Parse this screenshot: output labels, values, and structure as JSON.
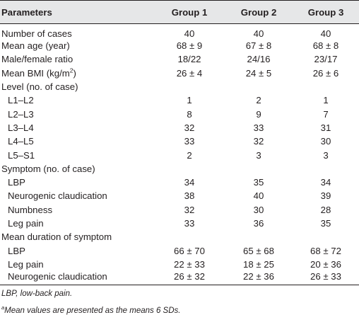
{
  "table": {
    "headers": [
      "Parameters",
      "Group 1",
      "Group 2",
      "Group 3"
    ],
    "rows": [
      {
        "label": "Number of cases",
        "sub": false,
        "values": [
          "40",
          "40",
          "40"
        ]
      },
      {
        "label": "Mean age (year)",
        "sub": false,
        "values": [
          "68 ± 9",
          "67 ± 8",
          "68 ± 8"
        ]
      },
      {
        "label": "Male/female ratio",
        "sub": false,
        "values": [
          "18/22",
          "24/16",
          "23/17"
        ]
      },
      {
        "label": "Mean BMI (kg/m",
        "sup": "2",
        "label_after": ")",
        "sub": false,
        "values": [
          "26 ± 4",
          "24 ± 5",
          "26 ± 6"
        ]
      },
      {
        "label": "Level (no. of case)",
        "sub": false,
        "values": [
          "",
          "",
          ""
        ]
      },
      {
        "label": "L1–L2",
        "sub": true,
        "values": [
          "1",
          "2",
          "1"
        ]
      },
      {
        "label": "L2–L3",
        "sub": true,
        "values": [
          "8",
          "9",
          "7"
        ]
      },
      {
        "label": "L3–L4",
        "sub": true,
        "values": [
          "32",
          "33",
          "31"
        ]
      },
      {
        "label": "L4–L5",
        "sub": true,
        "values": [
          "33",
          "32",
          "30"
        ]
      },
      {
        "label": "L5–S1",
        "sub": true,
        "values": [
          "2",
          "3",
          "3"
        ]
      },
      {
        "label": "Symptom (no. of case)",
        "sub": false,
        "values": [
          "",
          "",
          ""
        ]
      },
      {
        "label": "LBP",
        "sub": true,
        "values": [
          "34",
          "35",
          "34"
        ]
      },
      {
        "label": "Neurogenic claudication",
        "sub": true,
        "values": [
          "38",
          "40",
          "39"
        ]
      },
      {
        "label": "Numbness",
        "sub": true,
        "values": [
          "32",
          "30",
          "28"
        ]
      },
      {
        "label": "Leg pain",
        "sub": true,
        "values": [
          "33",
          "36",
          "35"
        ]
      },
      {
        "label": "Mean duration of symptom",
        "sub": false,
        "values": [
          "",
          "",
          ""
        ]
      },
      {
        "label": "LBP",
        "sub": true,
        "values": [
          "66 ± 70",
          "65 ± 68",
          "68 ± 72"
        ]
      },
      {
        "label": "Leg pain",
        "sub": true,
        "values": [
          "22 ± 33",
          "18 ± 25",
          "20 ± 36"
        ]
      },
      {
        "label": "Neurogenic claudication",
        "sub": true,
        "values": [
          "26 ± 32",
          "22 ± 36",
          "26 ± 33"
        ]
      }
    ]
  },
  "footnotes": {
    "abbrev": "LBP, low-back pain.",
    "a_mark": "a",
    "a_text": "Mean values are presented as the means 6 SDs."
  }
}
